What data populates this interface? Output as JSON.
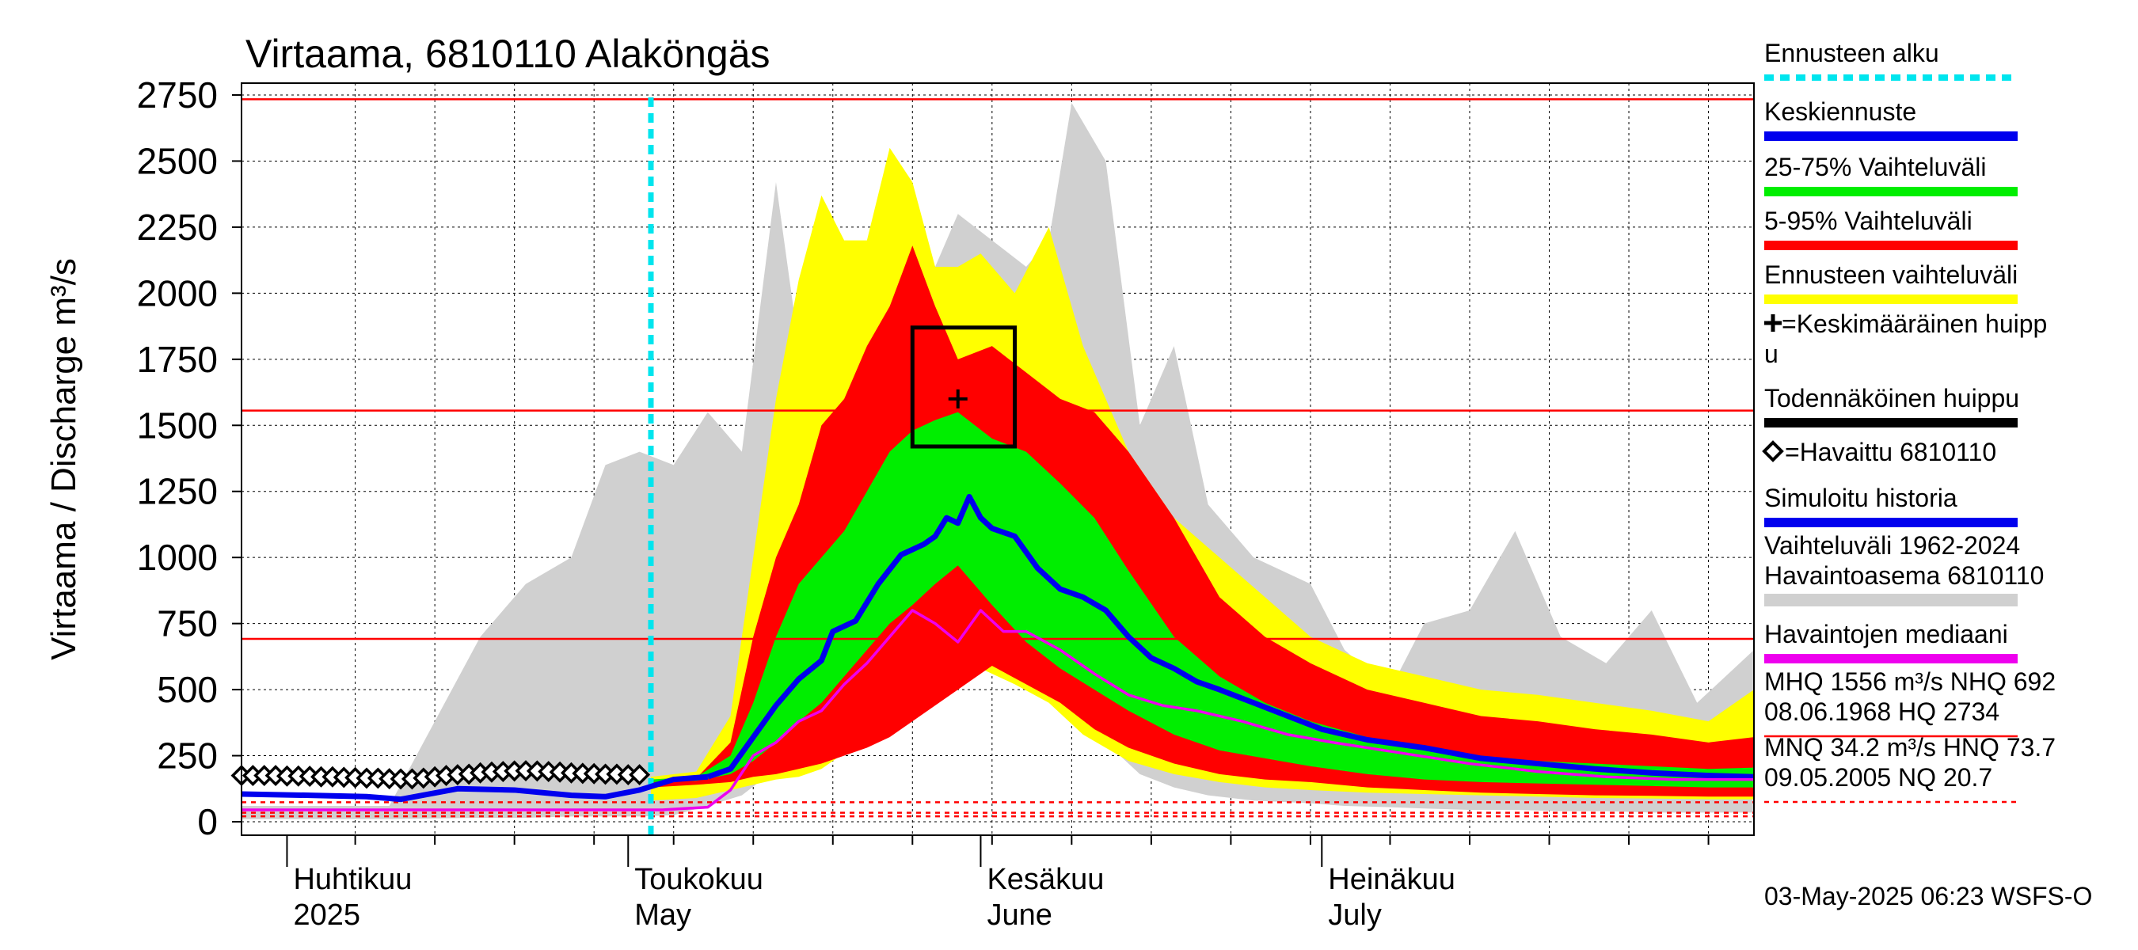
{
  "chart_data": {
    "type": "area",
    "title": "Virtaama, 6810110 Alaköngäs",
    "ylabel": "Virtaama / Discharge   m³/s",
    "ylim": [
      0,
      2750
    ],
    "yticks": [
      0,
      250,
      500,
      750,
      1000,
      1250,
      1500,
      1750,
      2000,
      2250,
      2500,
      2750
    ],
    "xlim": [
      "2025-03-28",
      "2025-08-08"
    ],
    "month_labels": [
      {
        "date": "2025-04-01",
        "line1": "Huhtikuu",
        "line2": "2025"
      },
      {
        "date": "2025-05-01",
        "line1": "Toukokuu",
        "line2": "May"
      },
      {
        "date": "2025-06-01",
        "line1": "Kesäkuu",
        "line2": "June"
      },
      {
        "date": "2025-07-01",
        "line1": "Heinäkuu",
        "line2": "July"
      }
    ],
    "forecast_start": "2025-05-03",
    "reference_lines": [
      {
        "name": "MHQ",
        "value": 1556
      },
      {
        "name": "HQ",
        "value": 2734
      },
      {
        "name": "NHQ",
        "value": 692
      }
    ],
    "low_reference_lines": [
      {
        "name": "HNQ",
        "value": 73.7
      },
      {
        "name": "MNQ",
        "value": 34.2
      },
      {
        "name": "NQ",
        "value": 20.7
      }
    ],
    "probable_peak": {
      "x0": "2025-05-26",
      "x1": "2025-06-04",
      "y0": 1420,
      "y1": 1870
    },
    "mean_peak": {
      "x": "2025-05-30",
      "y": 1600
    },
    "series": [
      {
        "name": "Vaihteluväli 1962-2024 Havaintoasema 6810110",
        "kind": "band",
        "color": "#d0d0d0",
        "x": [
          "2025-03-28",
          "2025-04-10",
          "2025-04-18",
          "2025-04-22",
          "2025-04-26",
          "2025-04-29",
          "2025-05-02",
          "2025-05-05",
          "2025-05-08",
          "2025-05-11",
          "2025-05-14",
          "2025-05-16",
          "2025-05-18",
          "2025-05-21",
          "2025-05-24",
          "2025-05-27",
          "2025-05-30",
          "2025-06-02",
          "2025-06-05",
          "2025-06-07",
          "2025-06-09",
          "2025-06-12",
          "2025-06-15",
          "2025-06-18",
          "2025-06-21",
          "2025-06-25",
          "2025-06-30",
          "2025-07-03",
          "2025-07-07",
          "2025-07-10",
          "2025-07-14",
          "2025-07-18",
          "2025-07-22",
          "2025-07-26",
          "2025-07-30",
          "2025-08-03",
          "2025-08-08"
        ],
        "upper": [
          60,
          60,
          700,
          900,
          1000,
          1350,
          1400,
          1350,
          1550,
          1400,
          2420,
          1800,
          1800,
          1850,
          1900,
          2000,
          2300,
          2200,
          2100,
          2200,
          2720,
          2500,
          1500,
          1800,
          1200,
          1000,
          900,
          650,
          500,
          750,
          800,
          1100,
          700,
          600,
          800,
          450,
          650
        ],
        "lower": [
          10,
          10,
          15,
          15,
          20,
          20,
          20,
          25,
          60,
          100,
          200,
          300,
          350,
          450,
          470,
          480,
          520,
          600,
          560,
          480,
          400,
          300,
          180,
          130,
          100,
          80,
          70,
          60,
          55,
          50,
          45,
          45,
          40,
          40,
          35,
          35,
          35
        ]
      },
      {
        "name": "Ennusteen vaihteluväli",
        "kind": "band",
        "color": "#ffff00",
        "x": [
          "2025-05-03",
          "2025-05-07",
          "2025-05-10",
          "2025-05-12",
          "2025-05-14",
          "2025-05-16",
          "2025-05-18",
          "2025-05-20",
          "2025-05-22",
          "2025-05-24",
          "2025-05-26",
          "2025-05-28",
          "2025-05-30",
          "2025-06-01",
          "2025-06-04",
          "2025-06-07",
          "2025-06-10",
          "2025-06-14",
          "2025-06-18",
          "2025-06-22",
          "2025-06-26",
          "2025-06-30",
          "2025-07-05",
          "2025-07-10",
          "2025-07-15",
          "2025-07-20",
          "2025-07-25",
          "2025-07-30",
          "2025-08-04",
          "2025-08-08"
        ],
        "upper": [
          170,
          190,
          400,
          1000,
          1600,
          2050,
          2370,
          2200,
          2200,
          2550,
          2420,
          2100,
          2100,
          2150,
          2000,
          2250,
          1800,
          1400,
          1150,
          1000,
          850,
          700,
          600,
          550,
          500,
          480,
          450,
          420,
          380,
          500
        ],
        "lower": [
          80,
          90,
          120,
          140,
          160,
          170,
          200,
          260,
          300,
          350,
          420,
          450,
          500,
          580,
          520,
          450,
          330,
          230,
          180,
          150,
          130,
          120,
          110,
          105,
          100,
          95,
          90,
          88,
          85,
          85
        ]
      },
      {
        "name": "5-95% Vaihteluväli",
        "kind": "band",
        "color": "#ff0000",
        "x": [
          "2025-05-03",
          "2025-05-07",
          "2025-05-10",
          "2025-05-12",
          "2025-05-14",
          "2025-05-16",
          "2025-05-18",
          "2025-05-20",
          "2025-05-22",
          "2025-05-24",
          "2025-05-26",
          "2025-05-28",
          "2025-05-30",
          "2025-06-02",
          "2025-06-05",
          "2025-06-08",
          "2025-06-11",
          "2025-06-14",
          "2025-06-18",
          "2025-06-22",
          "2025-06-26",
          "2025-06-30",
          "2025-07-05",
          "2025-07-10",
          "2025-07-15",
          "2025-07-20",
          "2025-07-25",
          "2025-07-30",
          "2025-08-04",
          "2025-08-08"
        ],
        "upper": [
          150,
          165,
          300,
          700,
          1000,
          1200,
          1500,
          1600,
          1800,
          1950,
          2180,
          1950,
          1750,
          1800,
          1700,
          1600,
          1550,
          1400,
          1150,
          850,
          700,
          600,
          500,
          450,
          400,
          380,
          350,
          330,
          300,
          320
        ],
        "lower": [
          130,
          140,
          150,
          170,
          180,
          200,
          220,
          250,
          280,
          320,
          380,
          440,
          500,
          590,
          520,
          450,
          350,
          280,
          220,
          180,
          160,
          150,
          130,
          120,
          110,
          105,
          100,
          98,
          95,
          95
        ]
      },
      {
        "name": "25-75% Vaihteluväli",
        "kind": "band",
        "color": "#00ee00",
        "x": [
          "2025-05-03",
          "2025-05-07",
          "2025-05-10",
          "2025-05-12",
          "2025-05-14",
          "2025-05-16",
          "2025-05-18",
          "2025-05-20",
          "2025-05-22",
          "2025-05-24",
          "2025-05-26",
          "2025-05-28",
          "2025-05-30",
          "2025-06-02",
          "2025-06-05",
          "2025-06-08",
          "2025-06-11",
          "2025-06-14",
          "2025-06-18",
          "2025-06-22",
          "2025-06-26",
          "2025-06-30",
          "2025-07-05",
          "2025-07-10",
          "2025-07-15",
          "2025-07-20",
          "2025-07-25",
          "2025-07-30",
          "2025-08-04",
          "2025-08-08"
        ],
        "upper": [
          160,
          170,
          250,
          450,
          700,
          900,
          1000,
          1100,
          1250,
          1400,
          1480,
          1520,
          1550,
          1450,
          1400,
          1280,
          1150,
          950,
          700,
          550,
          450,
          380,
          320,
          280,
          250,
          230,
          220,
          210,
          200,
          205
        ],
        "lower": [
          150,
          155,
          180,
          230,
          300,
          380,
          450,
          550,
          650,
          750,
          820,
          900,
          970,
          820,
          680,
          580,
          500,
          420,
          330,
          270,
          240,
          210,
          180,
          160,
          150,
          145,
          140,
          135,
          130,
          130
        ]
      },
      {
        "name": "Simuloitu historia",
        "kind": "line",
        "color": "#0000ee",
        "x": [
          "2025-03-28",
          "2025-04-03",
          "2025-04-08",
          "2025-04-11",
          "2025-04-16",
          "2025-04-21",
          "2025-04-26",
          "2025-04-29",
          "2025-05-02",
          "2025-05-05",
          "2025-05-08"
        ],
        "y": [
          105,
          100,
          95,
          85,
          125,
          120,
          100,
          95,
          120,
          160,
          170
        ]
      },
      {
        "name": "Keskiennuste",
        "kind": "line",
        "color": "#0000ee",
        "x": [
          "2025-05-08",
          "2025-05-10",
          "2025-05-12",
          "2025-05-14",
          "2025-05-16",
          "2025-05-18",
          "2025-05-19",
          "2025-05-21",
          "2025-05-23",
          "2025-05-25",
          "2025-05-27",
          "2025-05-28",
          "2025-05-29",
          "2025-05-30",
          "2025-05-31",
          "2025-06-01",
          "2025-06-02",
          "2025-06-04",
          "2025-06-06",
          "2025-06-08",
          "2025-06-10",
          "2025-06-12",
          "2025-06-14",
          "2025-06-16",
          "2025-06-18",
          "2025-06-20",
          "2025-06-22",
          "2025-06-25",
          "2025-06-28",
          "2025-07-01",
          "2025-07-05",
          "2025-07-10",
          "2025-07-15",
          "2025-07-20",
          "2025-07-25",
          "2025-07-30",
          "2025-08-04",
          "2025-08-08"
        ],
        "y": [
          170,
          200,
          320,
          440,
          540,
          610,
          720,
          760,
          900,
          1010,
          1050,
          1080,
          1150,
          1130,
          1230,
          1150,
          1110,
          1080,
          960,
          880,
          850,
          800,
          700,
          620,
          580,
          530,
          500,
          450,
          400,
          350,
          310,
          280,
          240,
          220,
          200,
          185,
          175,
          170
        ]
      },
      {
        "name": "Havaintojen mediaani",
        "kind": "line",
        "color": "#ee00ee",
        "x": [
          "2025-03-28",
          "2025-04-15",
          "2025-04-30",
          "2025-05-04",
          "2025-05-06",
          "2025-05-08",
          "2025-05-10",
          "2025-05-12",
          "2025-05-14",
          "2025-05-16",
          "2025-05-18",
          "2025-05-20",
          "2025-05-22",
          "2025-05-24",
          "2025-05-26",
          "2025-05-28",
          "2025-05-30",
          "2025-06-01",
          "2025-06-03",
          "2025-06-05",
          "2025-06-08",
          "2025-06-11",
          "2025-06-14",
          "2025-06-17",
          "2025-06-20",
          "2025-06-24",
          "2025-06-28",
          "2025-07-02",
          "2025-07-08",
          "2025-07-14",
          "2025-07-20",
          "2025-07-26",
          "2025-08-01",
          "2025-08-08"
        ],
        "y": [
          45,
          45,
          45,
          45,
          50,
          55,
          120,
          250,
          300,
          380,
          420,
          520,
          600,
          700,
          800,
          750,
          680,
          800,
          720,
          720,
          650,
          560,
          480,
          440,
          420,
          380,
          330,
          300,
          260,
          220,
          190,
          170,
          160,
          160
        ]
      },
      {
        "name": "Havaittu 6810110",
        "kind": "markers",
        "color": "#000000",
        "x": [
          "2025-03-28",
          "2025-03-29",
          "2025-03-30",
          "2025-03-31",
          "2025-04-01",
          "2025-04-02",
          "2025-04-03",
          "2025-04-04",
          "2025-04-05",
          "2025-04-06",
          "2025-04-07",
          "2025-04-08",
          "2025-04-09",
          "2025-04-10",
          "2025-04-11",
          "2025-04-12",
          "2025-04-13",
          "2025-04-14",
          "2025-04-15",
          "2025-04-16",
          "2025-04-17",
          "2025-04-18",
          "2025-04-19",
          "2025-04-20",
          "2025-04-21",
          "2025-04-22",
          "2025-04-23",
          "2025-04-24",
          "2025-04-25",
          "2025-04-26",
          "2025-04-27",
          "2025-04-28",
          "2025-04-29",
          "2025-04-30",
          "2025-05-01",
          "2025-05-02"
        ],
        "y": [
          175,
          175,
          175,
          175,
          173,
          173,
          172,
          170,
          170,
          168,
          167,
          165,
          165,
          163,
          162,
          162,
          165,
          170,
          175,
          178,
          180,
          185,
          188,
          190,
          192,
          193,
          192,
          190,
          188,
          185,
          183,
          182,
          180,
          180,
          178,
          178
        ]
      }
    ],
    "legend": [
      {
        "label": "Ennusteen alku",
        "color": "#00e5ee",
        "style": "dotted"
      },
      {
        "label": "Keskiennuste",
        "color": "#0000ee",
        "style": "solid"
      },
      {
        "label": "25-75% Vaihteluväli",
        "color": "#00ee00",
        "style": "solid"
      },
      {
        "label": "5-95% Vaihteluväli",
        "color": "#ff0000",
        "style": "solid"
      },
      {
        "label": "Ennusteen vaihteluväli",
        "color": "#ffff00",
        "style": "solid"
      },
      {
        "label": "=Keskimääräinen huipp",
        "label2": "u",
        "color": "#000000",
        "style": "none",
        "marker": "plus"
      },
      {
        "label": "Todennäköinen huippu",
        "color": "#000000",
        "style": "solid"
      },
      {
        "label": "=Havaittu 6810110",
        "color": "#000000",
        "style": "none",
        "marker": "diamond"
      },
      {
        "label": "Simuloitu historia",
        "color": "#0000ee",
        "style": "solid"
      },
      {
        "label": "Vaihteluväli 1962-2024",
        "label2": " Havaintoasema 6810110",
        "color": "#d0d0d0",
        "style": "solid"
      },
      {
        "label": "Havaintojen mediaani",
        "color": "#ee00ee",
        "style": "solid"
      },
      {
        "label": "MHQ 1556 m³/s NHQ  692",
        "label2": "08.06.1968 HQ 2734",
        "color": "#ff0000",
        "style": "thin"
      },
      {
        "label": "MNQ 34.2 m³/s HNQ 73.7",
        "label2": "09.05.2005 NQ 20.7",
        "color": "#ff0000",
        "style": "dashed"
      }
    ],
    "footer": "03-May-2025 06:23 WSFS-O"
  }
}
